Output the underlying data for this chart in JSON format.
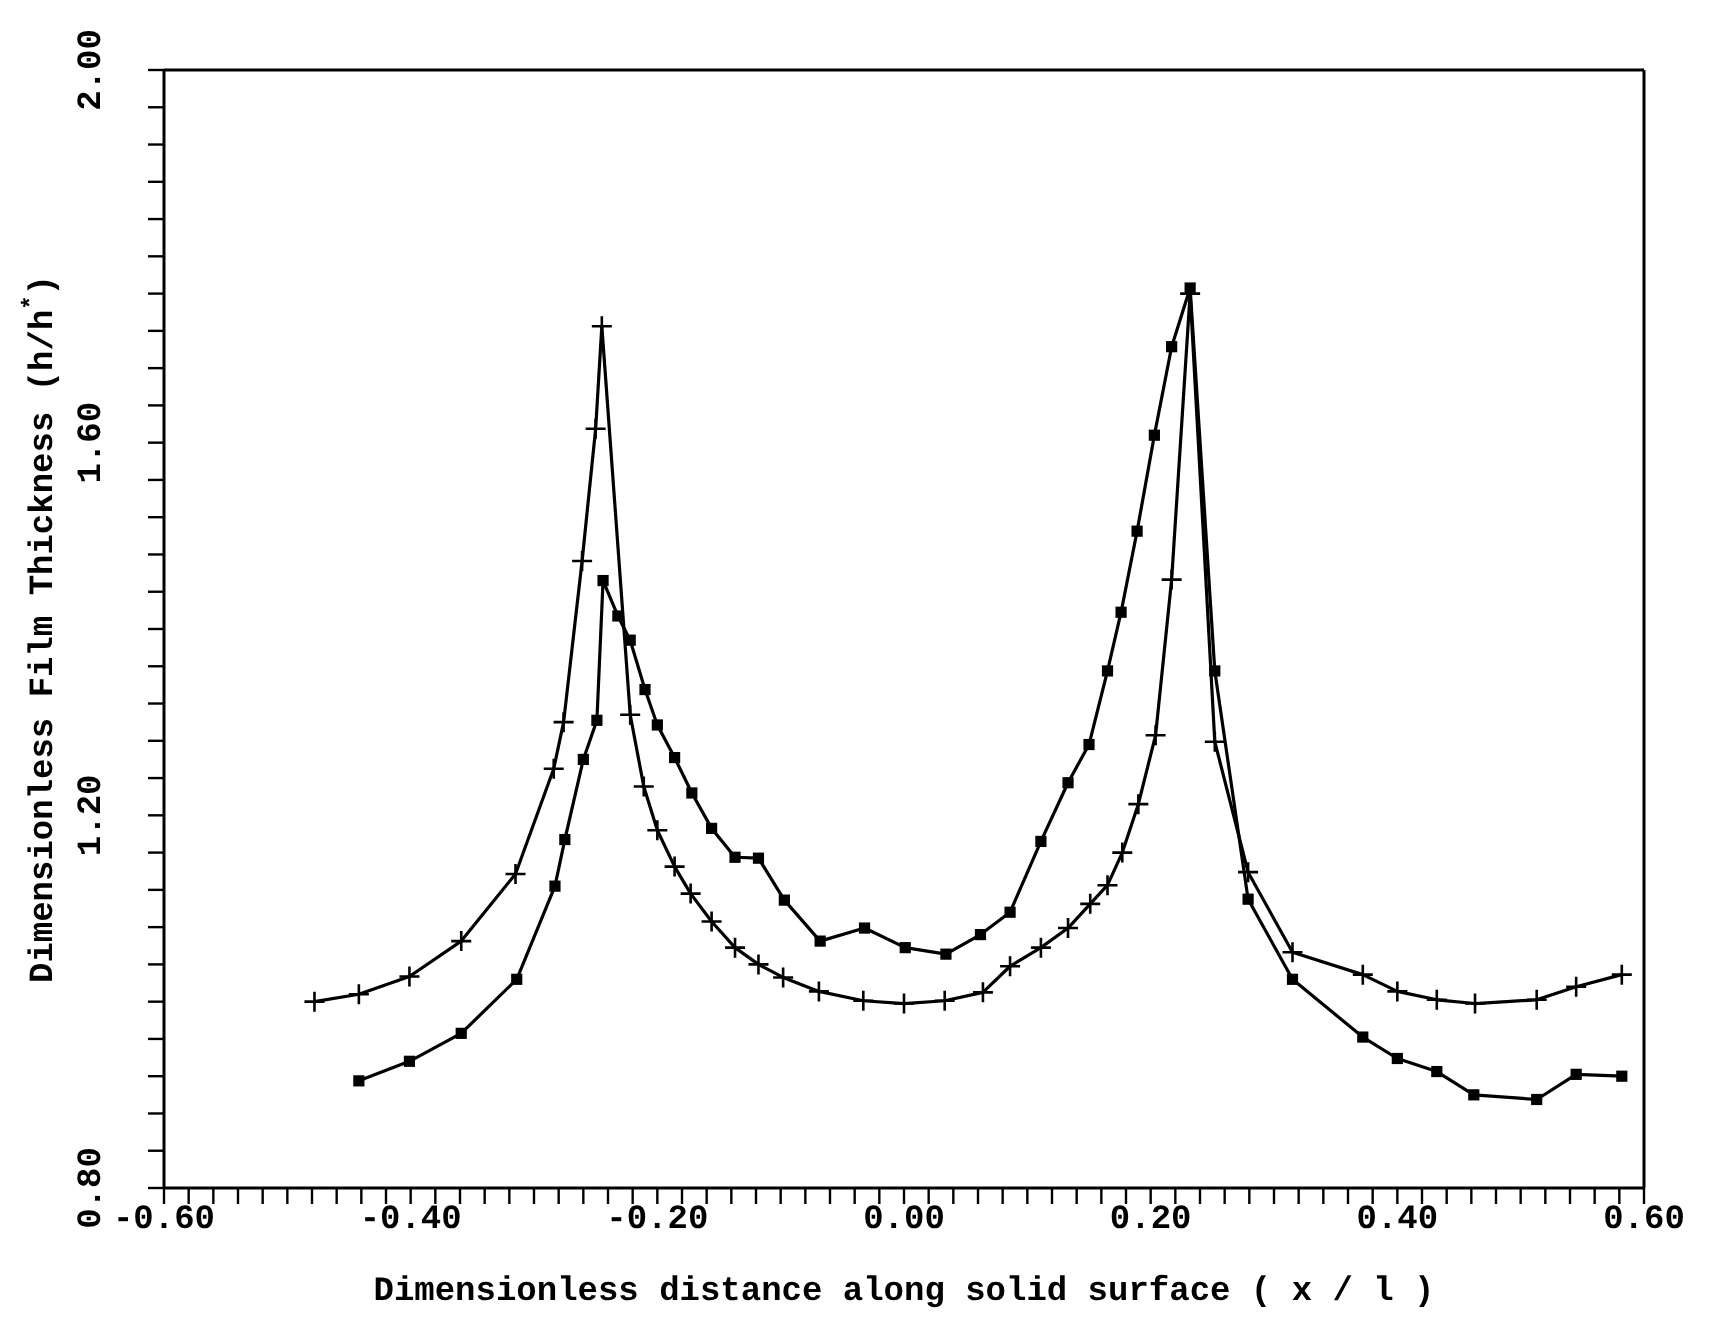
{
  "chart_data": {
    "type": "line",
    "xlabel": "Dimensionless distance along solid surface ( x / l )",
    "ylabel": "Dimensionless Film Thickness (h/h$^{*}$)",
    "xlim": [
      -0.6,
      0.6
    ],
    "ylim": [
      0.8,
      2.0
    ],
    "xticks": [
      {
        "value": -0.6,
        "label": "-0.60"
      },
      {
        "value": -0.58,
        "label": null
      },
      {
        "value": -0.56,
        "label": null
      },
      {
        "value": -0.54,
        "label": null
      },
      {
        "value": -0.52,
        "label": null
      },
      {
        "value": -0.5,
        "label": null
      },
      {
        "value": -0.48,
        "label": null
      },
      {
        "value": -0.46,
        "label": null
      },
      {
        "value": -0.44,
        "label": null
      },
      {
        "value": -0.42,
        "label": null
      },
      {
        "value": -0.4,
        "label": "-0.40"
      },
      {
        "value": -0.38,
        "label": null
      },
      {
        "value": -0.36,
        "label": null
      },
      {
        "value": -0.34,
        "label": null
      },
      {
        "value": -0.32,
        "label": null
      },
      {
        "value": -0.3,
        "label": null
      },
      {
        "value": -0.28,
        "label": null
      },
      {
        "value": -0.26,
        "label": null
      },
      {
        "value": -0.24,
        "label": null
      },
      {
        "value": -0.22,
        "label": null
      },
      {
        "value": -0.2,
        "label": "-0.20"
      },
      {
        "value": -0.18,
        "label": null
      },
      {
        "value": -0.16,
        "label": null
      },
      {
        "value": -0.14,
        "label": null
      },
      {
        "value": -0.12,
        "label": null
      },
      {
        "value": -0.1,
        "label": null
      },
      {
        "value": -0.08,
        "label": null
      },
      {
        "value": -0.06,
        "label": null
      },
      {
        "value": -0.04,
        "label": null
      },
      {
        "value": -0.02,
        "label": null
      },
      {
        "value": 0,
        "label": "0.00"
      },
      {
        "value": 0.02,
        "label": null
      },
      {
        "value": 0.04,
        "label": null
      },
      {
        "value": 0.06,
        "label": null
      },
      {
        "value": 0.08,
        "label": null
      },
      {
        "value": 0.1,
        "label": null
      },
      {
        "value": 0.12,
        "label": null
      },
      {
        "value": 0.14,
        "label": null
      },
      {
        "value": 0.16,
        "label": null
      },
      {
        "value": 0.18,
        "label": null
      },
      {
        "value": 0.2,
        "label": "0.20"
      },
      {
        "value": 0.22,
        "label": null
      },
      {
        "value": 0.24,
        "label": null
      },
      {
        "value": 0.26,
        "label": null
      },
      {
        "value": 0.28,
        "label": null
      },
      {
        "value": 0.3,
        "label": null
      },
      {
        "value": 0.32,
        "label": null
      },
      {
        "value": 0.34,
        "label": null
      },
      {
        "value": 0.36,
        "label": null
      },
      {
        "value": 0.38,
        "label": null
      },
      {
        "value": 0.4,
        "label": "0.40"
      },
      {
        "value": 0.42,
        "label": null
      },
      {
        "value": 0.44,
        "label": null
      },
      {
        "value": 0.46,
        "label": null
      },
      {
        "value": 0.48,
        "label": null
      },
      {
        "value": 0.5,
        "label": null
      },
      {
        "value": 0.52,
        "label": null
      },
      {
        "value": 0.54,
        "label": null
      },
      {
        "value": 0.56,
        "label": null
      },
      {
        "value": 0.58,
        "label": null
      },
      {
        "value": 0.6,
        "label": "0.60"
      }
    ],
    "yticks": [
      {
        "value": 0.8,
        "label": "0.80"
      },
      {
        "value": 0.84,
        "label": null
      },
      {
        "value": 0.88,
        "label": null
      },
      {
        "value": 0.92,
        "label": null
      },
      {
        "value": 0.96,
        "label": null
      },
      {
        "value": 1.0,
        "label": null
      },
      {
        "value": 1.04,
        "label": null
      },
      {
        "value": 1.08,
        "label": null
      },
      {
        "value": 1.12,
        "label": null
      },
      {
        "value": 1.16,
        "label": null
      },
      {
        "value": 1.2,
        "label": "1.20"
      },
      {
        "value": 1.24,
        "label": null
      },
      {
        "value": 1.28,
        "label": null
      },
      {
        "value": 1.32,
        "label": null
      },
      {
        "value": 1.36,
        "label": null
      },
      {
        "value": 1.4,
        "label": null
      },
      {
        "value": 1.44,
        "label": null
      },
      {
        "value": 1.48,
        "label": null
      },
      {
        "value": 1.52,
        "label": null
      },
      {
        "value": 1.56,
        "label": null
      },
      {
        "value": 1.6,
        "label": "1.60"
      },
      {
        "value": 1.64,
        "label": null
      },
      {
        "value": 1.68,
        "label": null
      },
      {
        "value": 1.72,
        "label": null
      },
      {
        "value": 1.76,
        "label": null
      },
      {
        "value": 1.8,
        "label": null
      },
      {
        "value": 1.84,
        "label": null
      },
      {
        "value": 1.88,
        "label": null
      },
      {
        "value": 1.92,
        "label": null
      },
      {
        "value": 1.96,
        "label": null
      },
      {
        "value": 2.0,
        "label": "2.00"
      }
    ],
    "line_style": "solid",
    "series": [
      {
        "color": "#000000",
        "marker": "cross",
        "x": [
          -0.478,
          -0.442,
          -0.401,
          -0.359,
          -0.315,
          -0.284,
          -0.276,
          -0.261,
          -0.25,
          -0.245,
          -0.222,
          -0.211,
          -0.2,
          -0.186,
          -0.173,
          -0.156,
          -0.137,
          -0.118,
          -0.098,
          -0.069,
          -0.033,
          0.0,
          0.033,
          0.064,
          0.086,
          0.111,
          0.133,
          0.151,
          0.165,
          0.177,
          0.19,
          0.204,
          0.217,
          0.232,
          0.252,
          0.279,
          0.315,
          0.372,
          0.4,
          0.432,
          0.463,
          0.513,
          0.545,
          0.582
        ],
        "values": [
          1.0,
          1.008,
          1.027,
          1.065,
          1.137,
          1.25,
          1.3,
          1.473,
          1.615,
          1.725,
          1.308,
          1.231,
          1.184,
          1.145,
          1.116,
          1.086,
          1.058,
          1.04,
          1.026,
          1.011,
          1.001,
          0.998,
          1.001,
          1.01,
          1.038,
          1.058,
          1.079,
          1.105,
          1.125,
          1.16,
          1.212,
          1.286,
          1.453,
          1.76,
          1.279,
          1.139,
          1.053,
          1.029,
          1.011,
          1.002,
          0.998,
          1.002,
          1.016,
          1.029
        ]
      },
      {
        "color": "#000000",
        "marker": "square",
        "x": [
          -0.442,
          -0.401,
          -0.359,
          -0.314,
          -0.283,
          -0.275,
          -0.26,
          -0.249,
          -0.244,
          -0.232,
          -0.222,
          -0.21,
          -0.2,
          -0.186,
          -0.172,
          -0.156,
          -0.137,
          -0.118,
          -0.097,
          -0.068,
          -0.032,
          0.001,
          0.034,
          0.062,
          0.086,
          0.111,
          0.133,
          0.15,
          0.165,
          0.176,
          0.189,
          0.203,
          0.217,
          0.232,
          0.252,
          0.279,
          0.315,
          0.372,
          0.4,
          0.432,
          0.462,
          0.513,
          0.545,
          0.582
        ],
        "values": [
          0.915,
          0.936,
          0.966,
          1.024,
          1.124,
          1.174,
          1.26,
          1.302,
          1.452,
          1.414,
          1.388,
          1.335,
          1.297,
          1.262,
          1.224,
          1.186,
          1.155,
          1.154,
          1.109,
          1.065,
          1.079,
          1.058,
          1.051,
          1.072,
          1.096,
          1.172,
          1.235,
          1.276,
          1.355,
          1.418,
          1.505,
          1.608,
          1.703,
          1.766,
          1.355,
          1.11,
          1.024,
          0.962,
          0.939,
          0.925,
          0.9,
          0.895,
          0.922,
          0.92
        ]
      }
    ]
  }
}
